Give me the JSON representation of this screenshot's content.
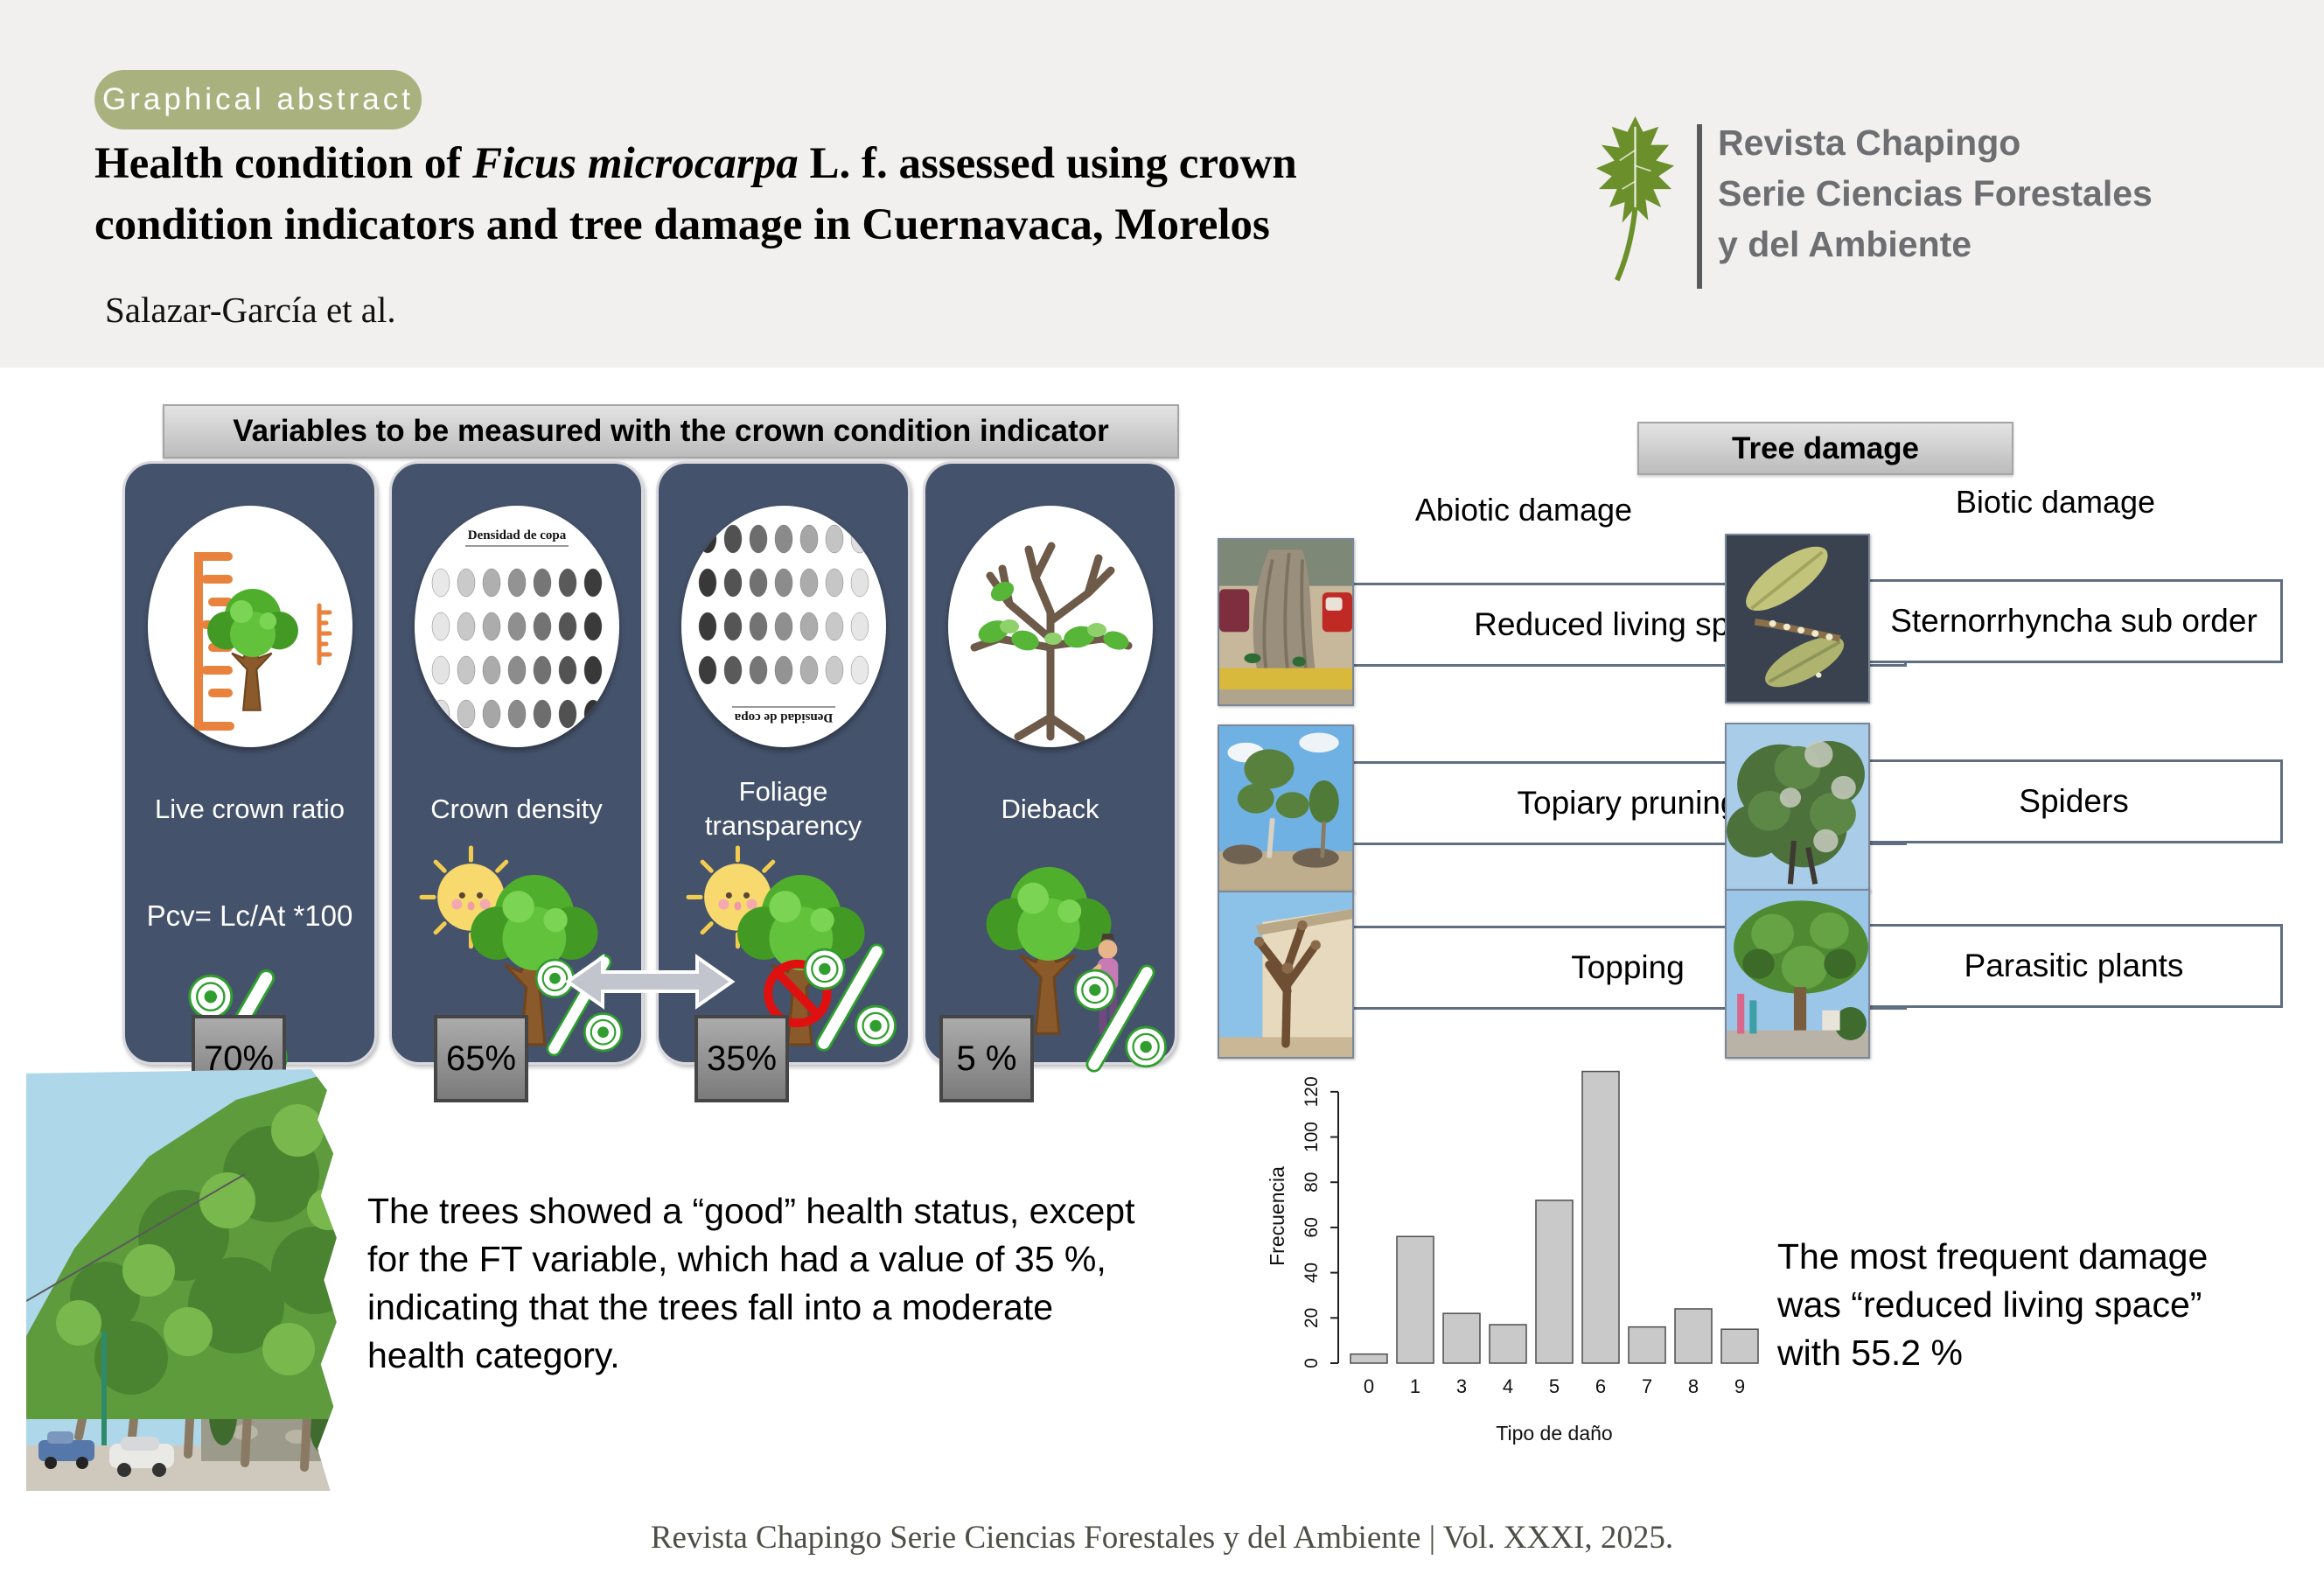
{
  "header": {
    "badge": "Graphical abstract",
    "title_pre": "Health condition of ",
    "title_italic": "Ficus microcarpa",
    "title_post": " L. f. assessed using crown condition indicators and tree damage in Cuernavaca, Morelos",
    "authors": "Salazar-García et al.",
    "journal": {
      "line1": "Revista Chapingo",
      "line2": "Serie Ciencias Forestales",
      "line3": "y del Ambiente"
    }
  },
  "variables_section": {
    "header": "Variables to be measured with the crown condition indicator",
    "chart_caption": "Densidad de copa",
    "cards": [
      {
        "label": "Live crown ratio",
        "formula": "Pcv= Lc/At *100",
        "value": "70%"
      },
      {
        "label": "Crown density",
        "value": "65%"
      },
      {
        "label": "Foliage transparency",
        "value": "35%"
      },
      {
        "label": "Dieback",
        "value": "5 %"
      }
    ]
  },
  "damage_section": {
    "header": "Tree damage",
    "columns": [
      {
        "title": "Abiotic damage",
        "items": [
          "Reduced living space",
          "Topiary pruning",
          "Topping"
        ]
      },
      {
        "title": "Biotic damage",
        "items": [
          "Sternorrhyncha sub order",
          "Spiders",
          "Parasitic plants"
        ]
      }
    ]
  },
  "findings": {
    "left_text": "The trees showed a “good” health status, except for the FT variable, which had a value of 35 %, indicating that the trees fall into a moderate health category.",
    "right_text": "The most frequent damage was “reduced living space” with 55.2 %"
  },
  "chart_data": {
    "type": "bar",
    "categories": [
      "0",
      "1",
      "3",
      "4",
      "5",
      "6",
      "7",
      "8",
      "9"
    ],
    "values": [
      4,
      56,
      22,
      17,
      72,
      129,
      16,
      24,
      15
    ],
    "title": "",
    "xlabel": "Tipo de daño",
    "ylabel": "Frecuencia",
    "yticks": [
      0,
      20,
      40,
      60,
      80,
      100,
      120
    ],
    "ylim": [
      0,
      130
    ],
    "grid": false,
    "legend": "none",
    "bar_color": "#c9c9c9"
  },
  "footer": "Revista Chapingo Serie Ciencias Forestales y del Ambiente | Vol. XXXI, 2025.",
  "colors": {
    "badge_olive": "#a9b27e",
    "card_slate": "#44526b",
    "header_strip": "#f1f0ee",
    "leaf_green": "#6b8f2b",
    "journal_gray": "#6d6e71",
    "bar_fill": "#c9c9c9"
  },
  "icons": {
    "logo": "oak-leaf-icon",
    "percent": "percent-coin-icon",
    "exchange": "double-arrow-icon",
    "sun": "sun-icon",
    "tree": "cartoon-tree-icon",
    "prohibition": "no-symbol-icon"
  }
}
